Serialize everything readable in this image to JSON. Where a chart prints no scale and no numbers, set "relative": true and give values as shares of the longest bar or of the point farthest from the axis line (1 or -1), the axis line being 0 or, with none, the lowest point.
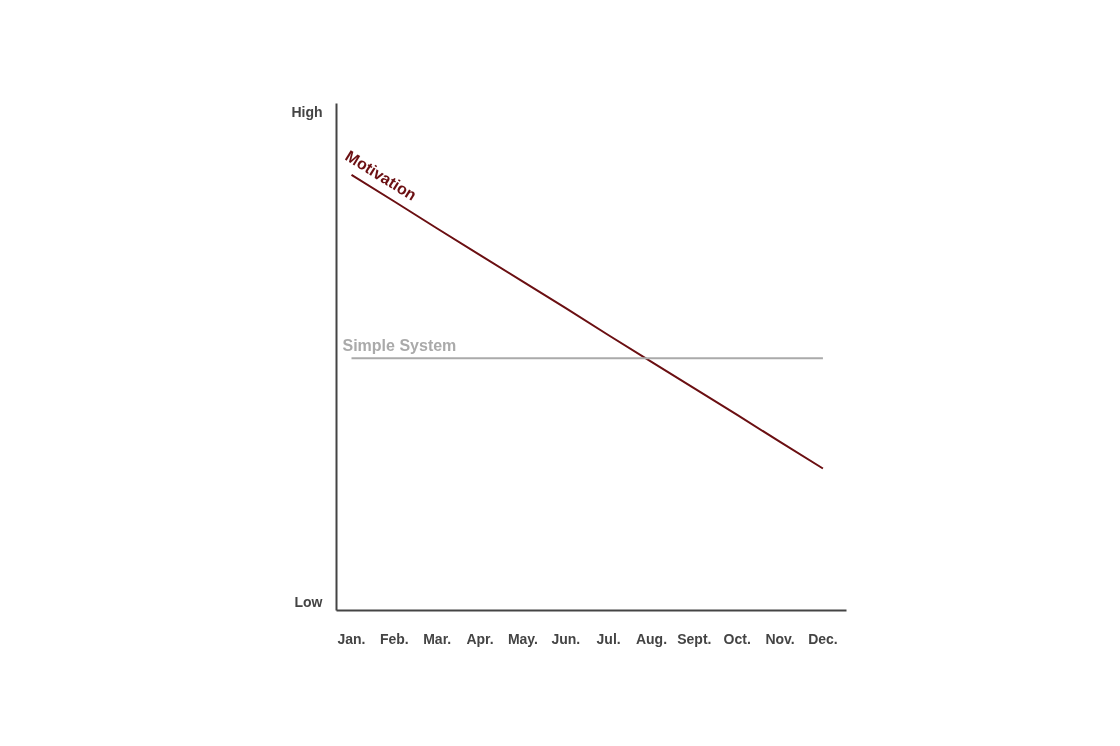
{
  "chart_data": {
    "type": "line",
    "relative": true,
    "categories": [
      "Jan.",
      "Feb.",
      "Mar.",
      "Apr.",
      "May.",
      "Jun.",
      "Jul.",
      "Aug.",
      "Sept.",
      "Oct.",
      "Nov.",
      "Dec."
    ],
    "series": [
      {
        "name": "Motivation",
        "color": "#6b0f12",
        "values": [
          1,
          0.939,
          0.877,
          0.816,
          0.755,
          0.694,
          0.632,
          0.571,
          0.51,
          0.449,
          0.387,
          0.326
        ]
      },
      {
        "name": "Simple System",
        "color": "#aaaaaa",
        "values": [
          0.579,
          0.579,
          0.579,
          0.579,
          0.579,
          0.579,
          0.579,
          0.579,
          0.579,
          0.579,
          0.579,
          0.579
        ]
      }
    ],
    "annotations": [
      "High",
      "Low"
    ],
    "tick_labels": "x",
    "grid": false,
    "legend": false,
    "marker": "none",
    "line_style": "solid"
  }
}
